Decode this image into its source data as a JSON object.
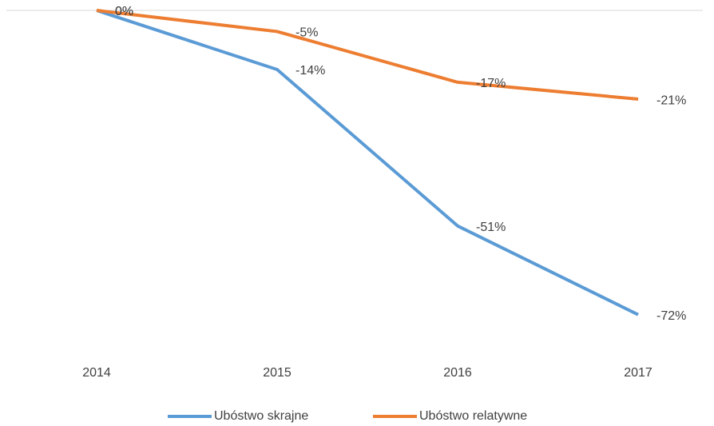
{
  "chart_data": {
    "type": "line",
    "categories": [
      "2014",
      "2015",
      "2016",
      "2017"
    ],
    "series": [
      {
        "name": "Ubóstwo skrajne",
        "color": "#5b9bd5",
        "values": [
          0,
          -14,
          -51,
          -72
        ],
        "value_labels": [
          "0%",
          "-14%",
          "-51%",
          "-72%"
        ]
      },
      {
        "name": "Ubóstwo relatywne",
        "color": "#ed7d31",
        "values": [
          0,
          -5,
          -17,
          -21
        ],
        "value_labels": [
          "0%",
          "-5%",
          "-17%",
          "-21%"
        ]
      }
    ],
    "ylim": [
      -80,
      0
    ],
    "legend": "bottom"
  }
}
